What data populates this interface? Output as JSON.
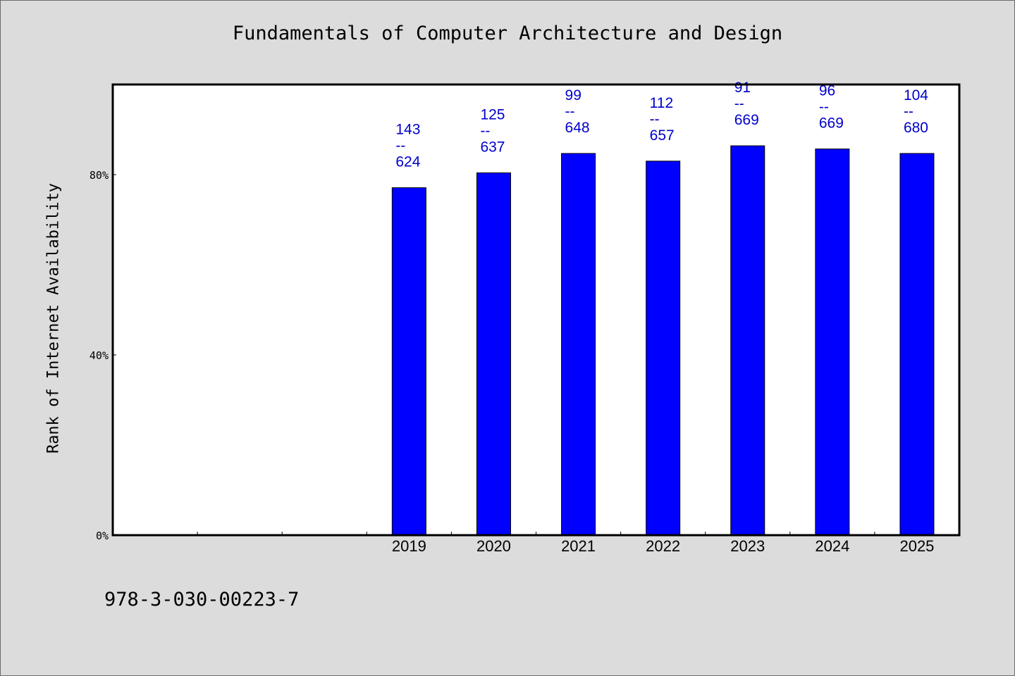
{
  "chart_data": {
    "type": "bar",
    "title": "Fundamentals of Computer Architecture and Design",
    "ylabel": "Rank of Internet Availability",
    "xlabel": "",
    "ylim": [
      0,
      1
    ],
    "yticks": [
      {
        "value": 0.0,
        "label": "0%"
      },
      {
        "value": 0.4,
        "label": "40%"
      },
      {
        "value": 0.8,
        "label": "80%"
      }
    ],
    "x_slots": 10,
    "categories": [
      "2019",
      "2020",
      "2021",
      "2022",
      "2023",
      "2024",
      "2025"
    ],
    "category_slot_start": 3,
    "values": [
      0.771,
      0.804,
      0.847,
      0.83,
      0.864,
      0.857,
      0.847
    ],
    "data_labels": [
      {
        "rank": "143",
        "sep": "--",
        "total": "624"
      },
      {
        "rank": "125",
        "sep": "--",
        "total": "637"
      },
      {
        "rank": "99",
        "sep": "--",
        "total": "648"
      },
      {
        "rank": "112",
        "sep": "--",
        "total": "657"
      },
      {
        "rank": "91",
        "sep": "--",
        "total": "669"
      },
      {
        "rank": "96",
        "sep": "--",
        "total": "669"
      },
      {
        "rank": "104",
        "sep": "--",
        "total": "680"
      }
    ],
    "bar_color": "#0000ff",
    "label_color": "#0000cc",
    "grid": false,
    "legend": "none"
  },
  "footer": {
    "isbn": "978-3-030-00223-7"
  }
}
